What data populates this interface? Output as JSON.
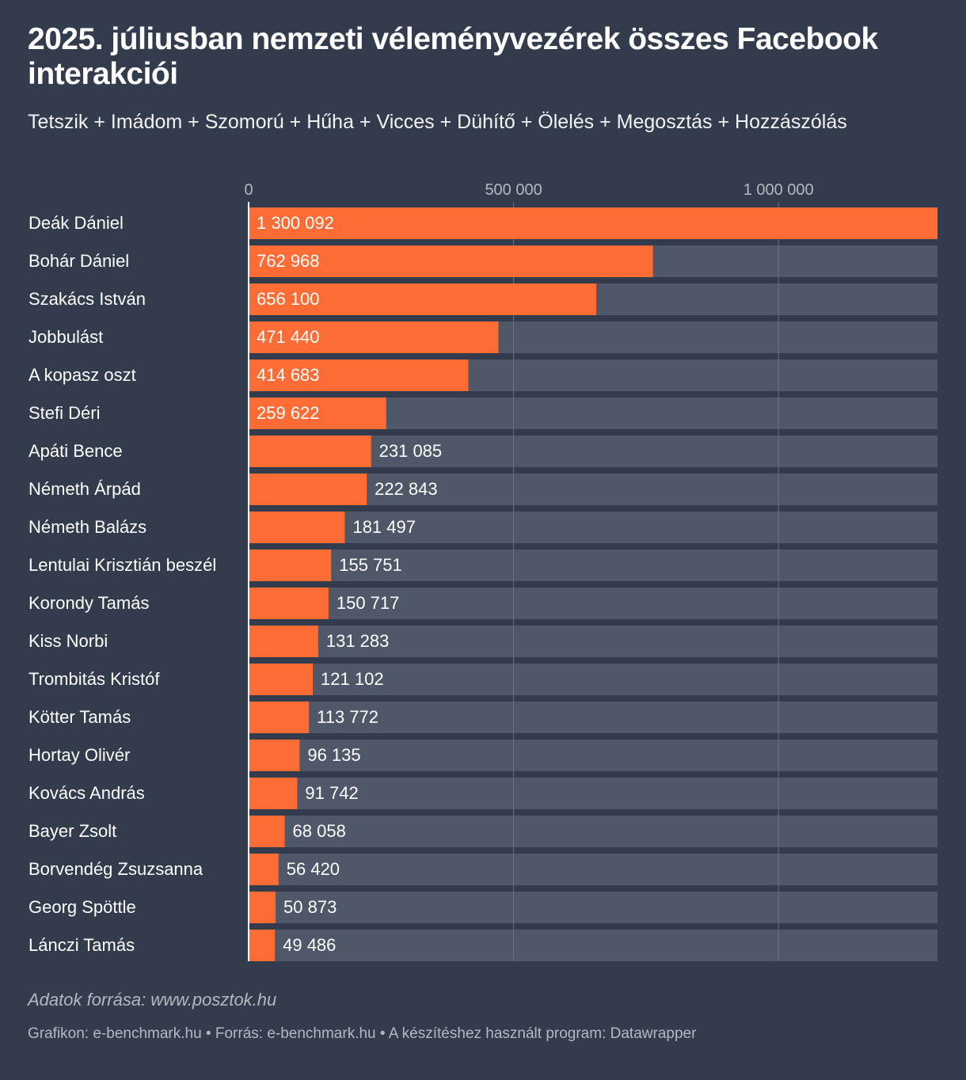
{
  "title": "2025. júliusban nemzeti véleményvezérek összes Facebook interakciói",
  "subtitle": "Tetszik + Imádom + Szomorú + Hűha + Vicces + Dühítő + Ölelés + Megosztás + Hozzászólás",
  "source_note": "Adatok forrása: www.posztok.hu",
  "footer": "Grafikon: e-benchmark.hu • Forrás: e-benchmark.hu • A készítéshez használt program: Datawrapper",
  "colors": {
    "background": "#333c4d",
    "bar": "#fe6c35",
    "track": "#4f5868",
    "grid": "#6b7382",
    "tick_text": "#b4b8c0",
    "text": "#ffffff"
  },
  "chart_data": {
    "type": "bar",
    "orientation": "horizontal",
    "title": "2025. júliusban nemzeti véleményvezérek összes Facebook interakciói",
    "xlim": [
      0,
      1300092
    ],
    "x_ticks": [
      {
        "value": 0,
        "label": "0"
      },
      {
        "value": 500000,
        "label": "500 000"
      },
      {
        "value": 1000000,
        "label": "1 000 000"
      }
    ],
    "grid": true,
    "categories": [
      "Deák Dániel",
      "Bohár Dániel",
      "Szakács István",
      "Jobbulást",
      "A kopasz oszt",
      "Stefi Déri",
      "Apáti Bence",
      "Németh Árpád",
      "Németh Balázs",
      "Lentulai Krisztián beszél",
      "Korondy Tamás",
      "Kiss Norbi",
      "Trombitás Kristóf",
      "Kötter Tamás",
      "Hortay Olivér",
      "Kovács András",
      "Bayer Zsolt",
      "Borvendég Zsuzsanna",
      "Georg Spöttle",
      "Lánczi Tamás"
    ],
    "values": [
      1300092,
      762968,
      656100,
      471440,
      414683,
      259622,
      231085,
      222843,
      181497,
      155751,
      150717,
      131283,
      121102,
      113772,
      96135,
      91742,
      68058,
      56420,
      50873,
      49486
    ],
    "value_labels": [
      "1 300 092",
      "762 968",
      "656 100",
      "471 440",
      "414 683",
      "259 622",
      "231 085",
      "222 843",
      "181 497",
      "155 751",
      "150 717",
      "131 283",
      "121 102",
      "113 772",
      "96 135",
      "91 742",
      "68 058",
      "56 420",
      "50 873",
      "49 486"
    ]
  }
}
